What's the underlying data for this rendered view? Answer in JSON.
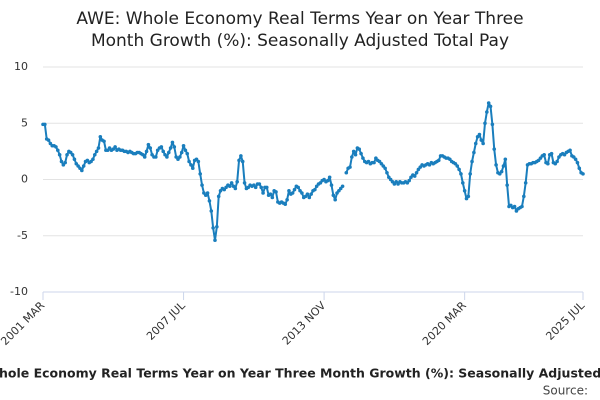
{
  "chart_data": {
    "type": "line",
    "title": [
      "AWE: Whole Economy Real Terms Year on Year Three",
      "Month Growth (%): Seasonally Adjusted Total Pay"
    ],
    "caption": "hole Economy Real Terms Year on Year Three Month Growth (%): Seasonally Adjusted",
    "source": "Source:",
    "color": "#1a7ebd",
    "ylim": [
      -10,
      10
    ],
    "yticks": [
      10,
      5,
      0,
      -5,
      -10
    ],
    "grid": true,
    "categories": [
      "2001 MAR",
      null,
      null,
      null,
      null,
      null,
      null,
      null,
      null,
      null,
      null,
      null,
      null,
      null,
      null,
      null,
      null,
      null,
      null,
      null,
      null,
      null,
      null,
      null,
      null,
      null,
      null,
      null,
      null,
      null,
      null,
      null,
      null,
      null,
      null,
      null,
      null,
      null,
      null,
      null,
      null,
      null,
      null,
      null,
      null,
      null,
      null,
      null,
      null,
      null,
      null,
      null,
      null,
      null,
      null,
      null,
      null,
      null,
      null,
      null,
      null,
      null,
      null,
      null,
      null,
      null,
      null,
      null,
      null,
      null,
      null,
      null,
      null,
      null,
      null,
      null,
      "2007 JUL",
      null,
      null,
      null,
      null,
      null,
      null,
      null,
      null,
      null,
      null,
      null,
      null,
      null,
      null,
      null,
      null,
      null,
      null,
      null,
      null,
      null,
      null,
      null,
      null,
      null,
      null,
      null,
      null,
      null,
      null,
      null,
      null,
      null,
      null,
      null,
      null,
      null,
      null,
      null,
      null,
      null,
      null,
      null,
      null,
      null,
      null,
      null,
      null,
      null,
      null,
      null,
      null,
      null,
      null,
      null,
      null,
      null,
      null,
      null,
      null,
      null,
      null,
      null,
      null,
      null,
      null,
      null,
      null,
      null,
      null,
      null,
      null,
      null,
      null,
      null,
      "2013 NOV",
      null,
      null,
      null,
      null,
      null,
      null,
      null,
      null,
      null,
      null,
      null,
      null,
      null,
      null,
      null,
      null,
      null,
      null,
      null,
      null,
      null,
      null,
      null,
      null,
      null,
      null,
      null,
      null,
      null,
      null,
      null,
      null,
      null,
      null,
      null,
      null,
      null,
      null,
      null,
      null,
      null,
      null,
      null,
      null,
      null,
      null,
      null,
      null,
      null,
      null,
      null,
      null,
      null,
      null,
      null,
      null,
      null,
      null,
      null,
      null,
      null,
      null,
      null,
      null,
      null,
      null,
      null,
      null,
      null,
      null,
      null,
      null,
      null,
      null,
      null,
      "2020 MAR",
      null,
      null,
      null,
      null,
      null,
      null,
      null,
      null,
      null,
      null,
      null,
      null,
      null,
      null,
      null,
      null,
      null,
      null,
      null,
      null,
      null,
      null,
      null,
      null,
      null,
      null,
      null,
      null,
      null,
      null,
      null,
      null,
      null,
      null,
      null,
      null,
      null,
      null,
      null,
      null,
      null,
      null,
      null,
      null,
      null,
      null,
      null,
      null,
      null,
      null,
      null,
      null,
      null,
      null,
      null,
      null,
      null,
      null,
      null,
      null,
      null,
      null,
      null,
      "2025 JUL"
    ],
    "values": [
      4.9,
      4.9,
      3.6,
      3.5,
      3.2,
      3.0,
      3.0,
      2.9,
      2.6,
      2.2,
      1.6,
      1.3,
      1.5,
      2.2,
      2.5,
      2.4,
      2.2,
      1.8,
      1.4,
      1.2,
      1.0,
      0.8,
      1.2,
      1.6,
      1.7,
      1.5,
      1.6,
      1.8,
      2.2,
      2.5,
      2.8,
      3.8,
      3.5,
      3.4,
      2.6,
      2.6,
      2.8,
      2.6,
      2.7,
      2.9,
      2.6,
      2.7,
      2.6,
      2.6,
      2.5,
      2.5,
      2.4,
      2.5,
      2.4,
      2.3,
      2.3,
      2.4,
      2.4,
      2.3,
      2.2,
      2.0,
      2.5,
      3.1,
      2.8,
      2.2,
      2.0,
      2.0,
      2.6,
      2.8,
      2.9,
      2.5,
      2.2,
      2.0,
      2.4,
      2.8,
      3.3,
      2.9,
      2.0,
      1.8,
      2.0,
      2.4,
      3.0,
      2.6,
      2.3,
      1.6,
      1.3,
      1.0,
      1.7,
      1.8,
      1.6,
      0.5,
      -0.5,
      -1.2,
      -1.4,
      -1.2,
      -1.9,
      -2.8,
      -4.3,
      -5.4,
      -4.2,
      -1.5,
      -1.0,
      -0.8,
      -0.9,
      -0.7,
      -0.5,
      -0.6,
      -0.3,
      -0.6,
      -0.8,
      -0.2,
      1.7,
      2.1,
      1.6,
      -0.3,
      -0.8,
      -0.7,
      -0.5,
      -0.6,
      -0.5,
      -0.7,
      -0.4,
      -0.4,
      -0.7,
      -1.2,
      -0.7,
      -0.7,
      -1.4,
      -1.3,
      -1.6,
      -1.0,
      -1.1,
      -2.0,
      -2.1,
      -2.0,
      -2.1,
      -2.2,
      -1.8,
      -1.0,
      -1.3,
      -1.2,
      -0.9,
      -0.6,
      -0.7,
      -1.0,
      -1.2,
      -1.6,
      -1.5,
      -1.3,
      -1.6,
      -1.3,
      -1.0,
      -0.9,
      -0.6,
      -0.4,
      -0.3,
      -0.1,
      0.0,
      -0.2,
      -0.1,
      0.2,
      -0.5,
      -1.4,
      -1.8,
      -1.2,
      -1.0,
      -0.8,
      -0.6,
      null,
      0.6,
      1.0,
      1.1,
      2.0,
      2.5,
      2.2,
      2.8,
      2.7,
      2.3,
      1.9,
      1.6,
      1.5,
      1.6,
      1.4,
      1.5,
      1.5,
      1.9,
      1.7,
      1.6,
      1.4,
      1.2,
      1.0,
      0.6,
      0.2,
      0.0,
      -0.2,
      -0.4,
      -0.2,
      -0.4,
      -0.2,
      -0.3,
      -0.3,
      -0.2,
      -0.3,
      -0.1,
      0.2,
      0.4,
      0.3,
      0.6,
      0.9,
      1.1,
      1.3,
      1.2,
      1.3,
      1.4,
      1.3,
      1.5,
      1.4,
      1.5,
      1.6,
      1.7,
      2.1,
      2.1,
      2.0,
      1.9,
      1.9,
      1.8,
      1.6,
      1.5,
      1.4,
      1.2,
      0.9,
      0.5,
      -0.3,
      -1.0,
      -1.7,
      -1.5,
      0.5,
      1.6,
      2.4,
      3.2,
      3.8,
      4.0,
      3.5,
      3.2,
      5.0,
      6.0,
      6.8,
      6.5,
      4.9,
      2.7,
      1.3,
      0.6,
      0.5,
      0.7,
      1.2,
      1.8,
      -0.5,
      -2.4,
      -2.3,
      -2.5,
      -2.4,
      -2.8,
      -2.6,
      -2.5,
      -2.4,
      -1.5,
      -0.3,
      1.3,
      1.4,
      1.4,
      1.5,
      1.5,
      1.6,
      1.7,
      1.9,
      2.1,
      2.2,
      1.5,
      1.4,
      2.2,
      2.3,
      1.5,
      1.4,
      1.6,
      2.0,
      2.2,
      2.3,
      2.2,
      2.4,
      2.5,
      2.6,
      2.1,
      2.0,
      1.8,
      1.5,
      1.0,
      0.6,
      0.5
    ]
  }
}
